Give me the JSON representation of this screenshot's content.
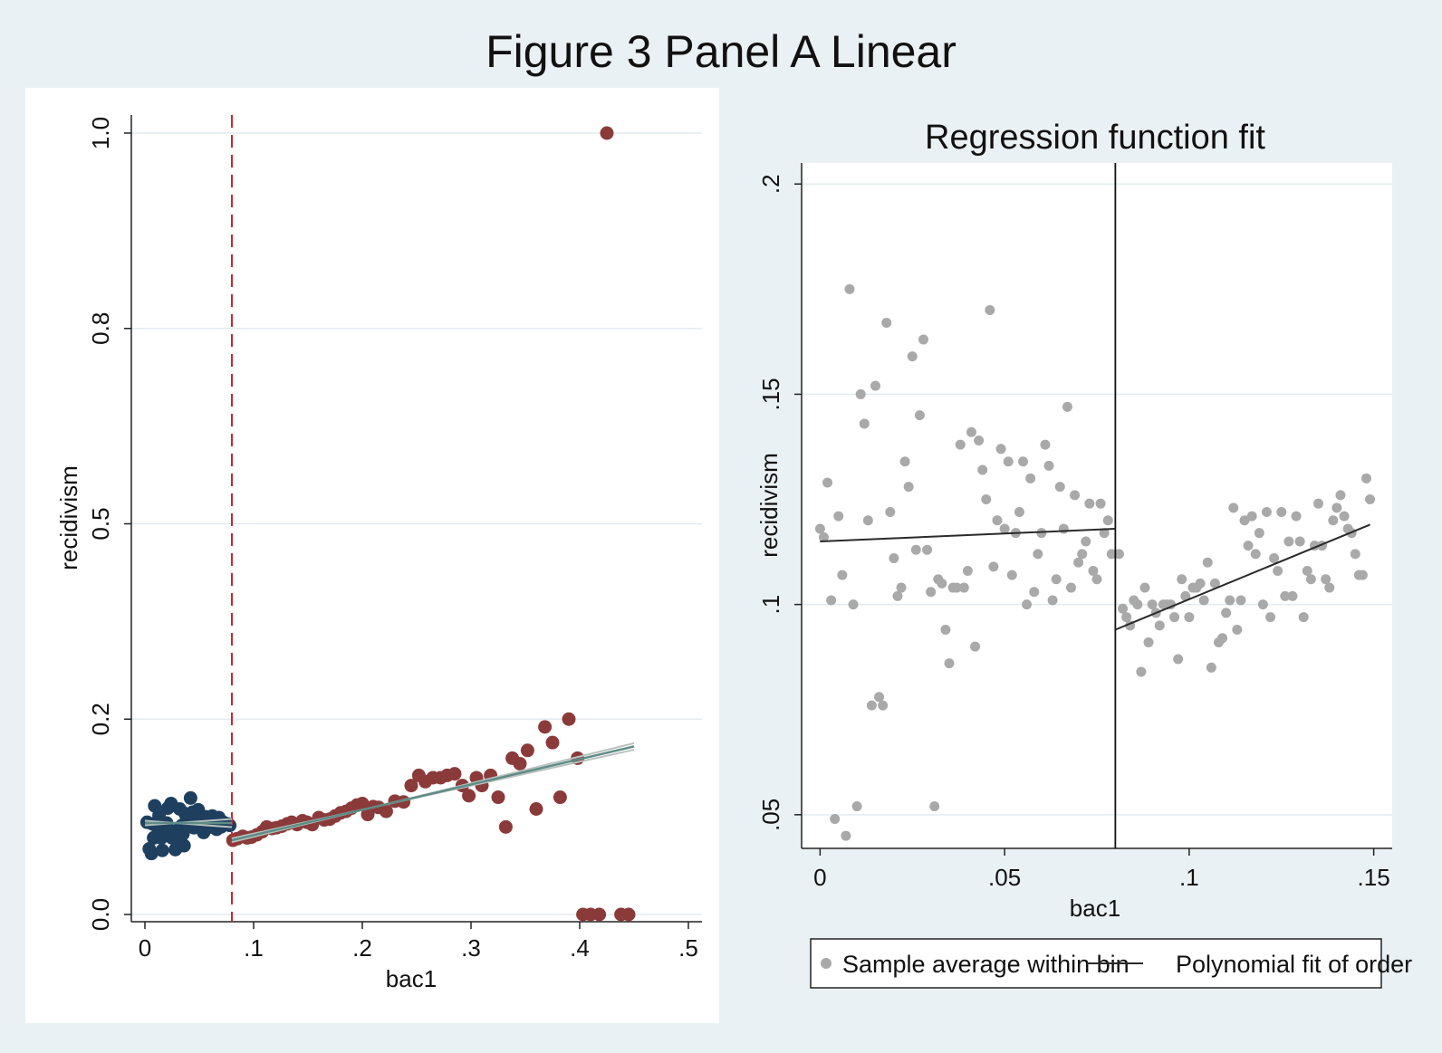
{
  "figure": {
    "title": "Figure 3 Panel A Linear"
  },
  "colors": {
    "background": "#eaf1f4",
    "left_panel_bg": "#ffffff",
    "right_plot_bg": "#ffffff",
    "grid": "#e3ebef",
    "below_cutoff": "#1f3f5f",
    "above_cutoff": "#8b3a3a",
    "fit_line": "#5e8c86",
    "ci_line": "#b9c2c0",
    "cutoff_line": "#c4282f",
    "binned_points": "#a9a9a9",
    "poly_fit": "#2a2a2a"
  },
  "chart_data": [
    {
      "type": "scatter",
      "title": "",
      "xlabel": "bac1",
      "ylabel": "recidivism",
      "xlim": [
        0,
        0.5
      ],
      "ylim": [
        0,
        1
      ],
      "x_ticks": [
        0,
        0.1,
        0.2,
        0.3,
        0.4,
        0.5
      ],
      "x_tick_labels": [
        "0",
        ".1",
        ".2",
        ".3",
        ".4",
        ".5"
      ],
      "y_ticks": [
        0,
        0.25,
        0.5,
        0.75,
        1.0
      ],
      "y_tick_labels": [
        "0.0",
        "0.2",
        "0.5",
        "0.8",
        "1.0"
      ],
      "grid": true,
      "cutoff": 0.08,
      "below_cutoff": {
        "x": [
          0.002,
          0.004,
          0.006,
          0.007,
          0.008,
          0.009,
          0.01,
          0.012,
          0.013,
          0.015,
          0.016,
          0.018,
          0.02,
          0.021,
          0.022,
          0.024,
          0.025,
          0.026,
          0.028,
          0.03,
          0.031,
          0.032,
          0.034,
          0.035,
          0.036,
          0.037,
          0.038,
          0.04,
          0.041,
          0.042,
          0.044,
          0.045,
          0.046,
          0.047,
          0.049,
          0.05,
          0.052,
          0.054,
          0.056,
          0.058,
          0.06,
          0.062,
          0.064,
          0.066,
          0.068,
          0.07,
          0.072,
          0.074,
          0.076,
          0.078
        ],
        "y": [
          0.118,
          0.084,
          0.078,
          0.116,
          0.098,
          0.139,
          0.1,
          0.111,
          0.127,
          0.098,
          0.082,
          0.104,
          0.117,
          0.136,
          0.103,
          0.142,
          0.098,
          0.1,
          0.083,
          0.108,
          0.094,
          0.135,
          0.114,
          0.103,
          0.088,
          0.129,
          0.119,
          0.121,
          0.113,
          0.149,
          0.131,
          0.111,
          0.122,
          0.114,
          0.134,
          0.121,
          0.119,
          0.105,
          0.125,
          0.112,
          0.112,
          0.126,
          0.111,
          0.109,
          0.124,
          0.112,
          0.118,
          0.115,
          0.116,
          0.114
        ]
      },
      "above_cutoff": {
        "x": [
          0.081,
          0.085,
          0.09,
          0.094,
          0.098,
          0.103,
          0.108,
          0.112,
          0.117,
          0.121,
          0.126,
          0.131,
          0.135,
          0.14,
          0.145,
          0.149,
          0.154,
          0.16,
          0.165,
          0.17,
          0.175,
          0.18,
          0.185,
          0.19,
          0.195,
          0.2,
          0.205,
          0.21,
          0.215,
          0.222,
          0.23,
          0.238,
          0.245,
          0.252,
          0.258,
          0.265,
          0.272,
          0.278,
          0.285,
          0.292,
          0.298,
          0.305,
          0.31,
          0.318,
          0.325,
          0.332,
          0.338,
          0.345,
          0.352,
          0.36,
          0.368,
          0.375,
          0.382,
          0.39,
          0.398,
          0.403,
          0.41,
          0.418,
          0.425,
          0.438,
          0.445
        ],
        "y": [
          0.095,
          0.097,
          0.1,
          0.098,
          0.099,
          0.102,
          0.106,
          0.112,
          0.11,
          0.111,
          0.113,
          0.116,
          0.118,
          0.115,
          0.12,
          0.118,
          0.115,
          0.124,
          0.121,
          0.122,
          0.126,
          0.13,
          0.132,
          0.136,
          0.14,
          0.142,
          0.128,
          0.138,
          0.137,
          0.132,
          0.145,
          0.144,
          0.165,
          0.178,
          0.17,
          0.175,
          0.175,
          0.178,
          0.18,
          0.165,
          0.152,
          0.175,
          0.165,
          0.178,
          0.15,
          0.112,
          0.2,
          0.193,
          0.21,
          0.135,
          0.24,
          0.22,
          0.15,
          0.25,
          0.2,
          0.0,
          0.0,
          0.0,
          1.0,
          0.0,
          0.0
        ]
      },
      "fit_below": {
        "x": [
          0,
          0.08
        ],
        "y": [
          0.117,
          0.117
        ]
      },
      "fit_above": {
        "x": [
          0.08,
          0.45
        ],
        "y": [
          0.095,
          0.215
        ]
      }
    },
    {
      "type": "scatter",
      "title": "Regression function fit",
      "xlabel": "bac1",
      "ylabel": "recidivism",
      "xlim": [
        -0.005,
        0.155
      ],
      "ylim": [
        0.042,
        0.205
      ],
      "x_ticks": [
        0,
        0.05,
        0.1,
        0.15
      ],
      "x_tick_labels": [
        "0",
        ".05",
        ".1",
        ".15"
      ],
      "y_ticks": [
        0.05,
        0.1,
        0.15,
        0.2
      ],
      "y_tick_labels": [
        ".05",
        ".1",
        ".15",
        ".2"
      ],
      "grid": true,
      "cutoff": 0.08,
      "legend": {
        "position": "bottom",
        "entries": [
          "Sample average within bin",
          "Polynomial fit of order"
        ]
      },
      "binned": {
        "x": [
          0,
          0.001,
          0.002,
          0.003,
          0.004,
          0.005,
          0.006,
          0.007,
          0.008,
          0.009,
          0.01,
          0.011,
          0.012,
          0.013,
          0.014,
          0.015,
          0.016,
          0.017,
          0.018,
          0.019,
          0.02,
          0.021,
          0.022,
          0.023,
          0.024,
          0.025,
          0.026,
          0.027,
          0.028,
          0.029,
          0.03,
          0.031,
          0.032,
          0.033,
          0.034,
          0.035,
          0.036,
          0.037,
          0.038,
          0.039,
          0.04,
          0.041,
          0.042,
          0.043,
          0.044,
          0.045,
          0.046,
          0.047,
          0.048,
          0.049,
          0.05,
          0.051,
          0.052,
          0.053,
          0.054,
          0.055,
          0.056,
          0.057,
          0.058,
          0.059,
          0.06,
          0.061,
          0.062,
          0.063,
          0.064,
          0.065,
          0.066,
          0.067,
          0.068,
          0.069,
          0.07,
          0.071,
          0.072,
          0.073,
          0.074,
          0.075,
          0.076,
          0.077,
          0.078,
          0.079,
          0.081,
          0.082,
          0.083,
          0.084,
          0.085,
          0.086,
          0.087,
          0.088,
          0.089,
          0.09,
          0.091,
          0.092,
          0.093,
          0.094,
          0.095,
          0.096,
          0.097,
          0.098,
          0.099,
          0.1,
          0.101,
          0.102,
          0.103,
          0.104,
          0.105,
          0.106,
          0.107,
          0.108,
          0.109,
          0.11,
          0.111,
          0.112,
          0.113,
          0.114,
          0.115,
          0.116,
          0.117,
          0.118,
          0.119,
          0.12,
          0.121,
          0.122,
          0.123,
          0.124,
          0.125,
          0.126,
          0.127,
          0.128,
          0.129,
          0.13,
          0.131,
          0.132,
          0.133,
          0.134,
          0.135,
          0.136,
          0.137,
          0.138,
          0.139,
          0.14,
          0.141,
          0.142,
          0.143,
          0.144,
          0.145,
          0.146,
          0.147,
          0.148,
          0.149
        ],
        "y": [
          0.118,
          0.116,
          0.129,
          0.101,
          0.049,
          0.121,
          0.107,
          0.045,
          0.175,
          0.1,
          0.052,
          0.15,
          0.143,
          0.12,
          0.076,
          0.152,
          0.078,
          0.076,
          0.167,
          0.122,
          0.111,
          0.102,
          0.104,
          0.134,
          0.128,
          0.159,
          0.113,
          0.145,
          0.163,
          0.113,
          0.103,
          0.052,
          0.106,
          0.105,
          0.094,
          0.086,
          0.104,
          0.104,
          0.138,
          0.104,
          0.108,
          0.141,
          0.09,
          0.139,
          0.132,
          0.125,
          0.17,
          0.109,
          0.12,
          0.137,
          0.118,
          0.134,
          0.107,
          0.117,
          0.122,
          0.134,
          0.1,
          0.13,
          0.103,
          0.112,
          0.117,
          0.138,
          0.133,
          0.101,
          0.106,
          0.128,
          0.118,
          0.147,
          0.104,
          0.126,
          0.11,
          0.112,
          0.115,
          0.124,
          0.108,
          0.106,
          0.124,
          0.117,
          0.12,
          0.112,
          0.112,
          0.099,
          0.097,
          0.095,
          0.101,
          0.1,
          0.084,
          0.104,
          0.091,
          0.1,
          0.098,
          0.095,
          0.1,
          0.1,
          0.1,
          0.097,
          0.087,
          0.106,
          0.102,
          0.097,
          0.104,
          0.104,
          0.105,
          0.101,
          0.11,
          0.085,
          0.105,
          0.091,
          0.092,
          0.098,
          0.101,
          0.123,
          0.094,
          0.101,
          0.12,
          0.114,
          0.121,
          0.112,
          0.117,
          0.1,
          0.122,
          0.097,
          0.111,
          0.108,
          0.122,
          0.102,
          0.115,
          0.102,
          0.121,
          0.115,
          0.097,
          0.108,
          0.106,
          0.114,
          0.124,
          0.114,
          0.106,
          0.104,
          0.12,
          0.123,
          0.126,
          0.121,
          0.118,
          0.117,
          0.112,
          0.107,
          0.107,
          0.13,
          0.125
        ]
      },
      "fit_below": {
        "x": [
          0,
          0.08
        ],
        "y": [
          0.115,
          0.118
        ]
      },
      "fit_above": {
        "x": [
          0.08,
          0.149
        ],
        "y": [
          0.094,
          0.119
        ]
      }
    }
  ]
}
